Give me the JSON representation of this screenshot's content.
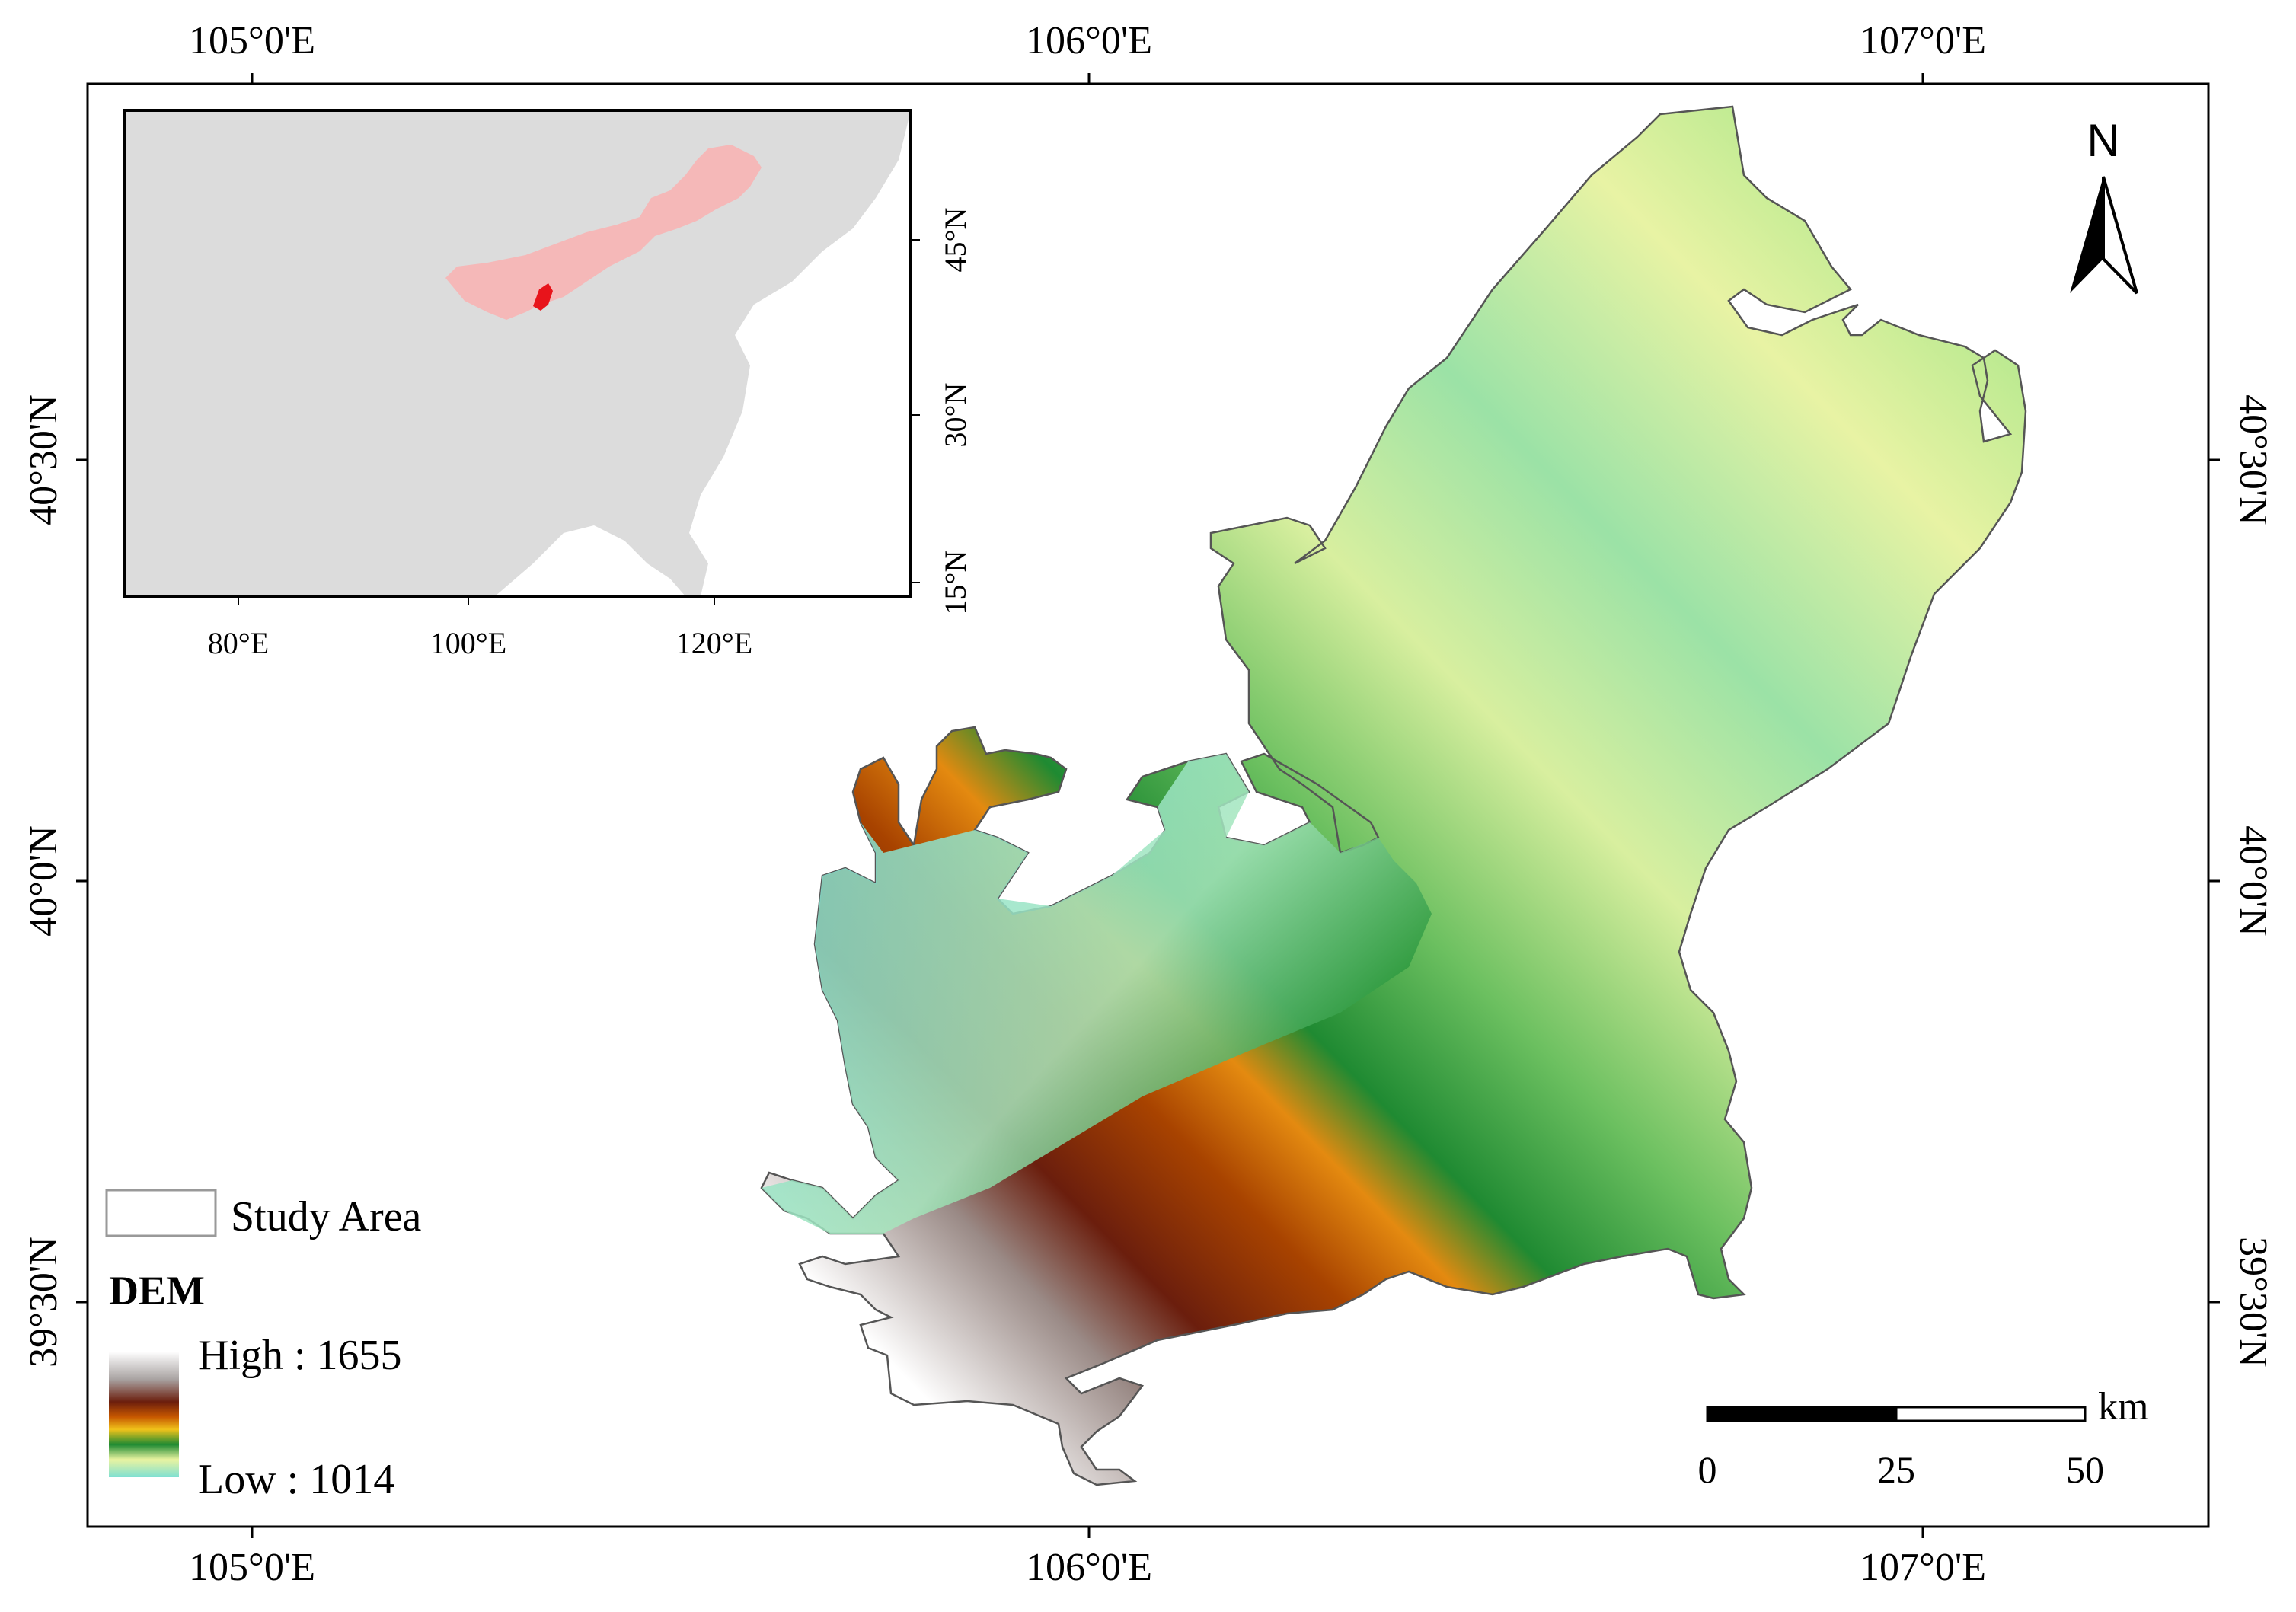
{
  "map": {
    "top_ticks": [
      "105°0'E",
      "106°0'E",
      "107°0'E"
    ],
    "bottom_ticks": [
      "105°0'E",
      "106°0'E",
      "107°0'E"
    ],
    "left_ticks": [
      "40°30'N",
      "40°0'N",
      "39°30'N"
    ],
    "right_ticks": [
      "40°30'N",
      "40°0'N",
      "39°30'N"
    ]
  },
  "inset": {
    "x_ticks": [
      "80°E",
      "100°E",
      "120°E"
    ],
    "y_ticks": [
      "45°N",
      "30°N",
      "15°N"
    ],
    "colors": {
      "background": "#dcdcdc",
      "region": "#f5b8b8",
      "study_area": "#e8141b"
    }
  },
  "legend": {
    "study_area_label": "Study Area",
    "dem_title": "DEM",
    "high_label": "High : 1655",
    "low_label": "Low : 1014"
  },
  "north_arrow": {
    "label": "N",
    "icon": "north-arrow-icon"
  },
  "scale_bar": {
    "unit": "km",
    "labels": [
      "0",
      "25",
      "50"
    ]
  },
  "colors": {
    "dem_ramp": [
      "#ffffff",
      "#bfbfbf",
      "#6b1e0d",
      "#9a3a05",
      "#d96b00",
      "#f0c21a",
      "#2a9a3a",
      "#c8ee9a",
      "#7fe0d2"
    ]
  }
}
